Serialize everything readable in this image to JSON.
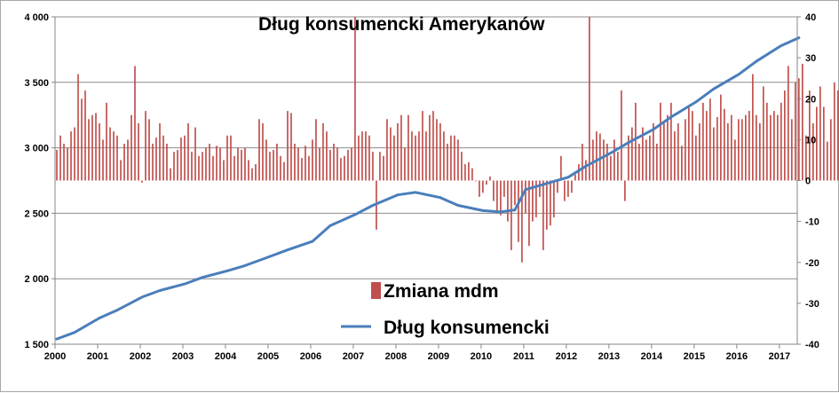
{
  "chart_data": {
    "type": "bar+line",
    "title": "Dług konsumencki Amerykanów",
    "x_axis": {
      "ticks": [
        "2000",
        "2001",
        "2002",
        "2003",
        "2004",
        "2005",
        "2006",
        "2007",
        "2008",
        "2009",
        "2010",
        "2011",
        "2012",
        "2013",
        "2014",
        "2015",
        "2016",
        "2017"
      ],
      "range": [
        2000.0,
        2017.42
      ]
    },
    "y_left": {
      "ticks": [
        "1 500",
        "2 000",
        "2 500",
        "3 000",
        "3 500",
        "4 000"
      ],
      "range": [
        1500,
        4000
      ]
    },
    "y_right": {
      "ticks": [
        "-40",
        "-30",
        "-20",
        "-10",
        "0",
        "10",
        "20",
        "30",
        "40"
      ],
      "range": [
        -40,
        40
      ]
    },
    "grid": true,
    "legend_position": "center-left",
    "series": [
      {
        "name": "Zmiana mdm",
        "type": "bar",
        "axis": "right",
        "color": "#c0504d",
        "start": "2000-01",
        "frequency": "monthly",
        "values": [
          7.5,
          11.0,
          9.0,
          8.0,
          12.0,
          13.0,
          26.0,
          20.0,
          22.0,
          15.0,
          16.0,
          16.5,
          14.0,
          10.0,
          19.0,
          13.0,
          12.0,
          11.0,
          5.0,
          9.0,
          10.0,
          16.0,
          28.0,
          14.0,
          -0.5,
          17.0,
          15.0,
          9.0,
          10.5,
          14.0,
          11.0,
          9.0,
          3.0,
          7.0,
          7.5,
          10.5,
          11.0,
          14.0,
          7.0,
          13.0,
          6.0,
          7.0,
          8.0,
          9.0,
          6.0,
          8.5,
          8.0,
          5.0,
          11.0,
          11.0,
          6.0,
          8.0,
          7.5,
          8.0,
          5.0,
          3.0,
          4.0,
          15.0,
          14.0,
          10.0,
          7.0,
          7.5,
          9.0,
          6.0,
          4.5,
          17.0,
          16.5,
          9.0,
          8.0,
          5.5,
          8.5,
          6.0,
          10.0,
          15.0,
          8.0,
          14.0,
          12.0,
          7.5,
          9.0,
          8.0,
          5.5,
          6.0,
          7.5,
          8.0,
          40.0,
          11.0,
          12.0,
          12.0,
          11.0,
          7.0,
          -12.0,
          7.0,
          6.0,
          15.0,
          13.0,
          11.0,
          14.0,
          16.0,
          8.0,
          16.0,
          12.0,
          11.0,
          12.0,
          17.0,
          12.0,
          16.0,
          17.0,
          15.0,
          14.0,
          12.0,
          9.0,
          11.0,
          11.0,
          10.0,
          7.0,
          4.0,
          4.5,
          3.0,
          0.0,
          -4.0,
          -3.0,
          -1.0,
          1.0,
          -5.0,
          -8.0,
          -8.5,
          -4.0,
          -10.0,
          -17.0,
          -6.0,
          -15.0,
          -20.0,
          -8.0,
          -16.0,
          -10.0,
          -9.0,
          -4.0,
          -17.0,
          -12.0,
          -11.0,
          -9.0,
          -3.0,
          6.0,
          -5.0,
          -4.0,
          -3.0,
          1.5,
          4.0,
          9.0,
          5.0,
          40.0,
          10.0,
          12.0,
          11.5,
          10.0,
          9.0,
          6.0,
          10.0,
          7.0,
          22.0,
          -5.0,
          11.0,
          13.0,
          19.0,
          9.0,
          13.0,
          10.0,
          11.0,
          14.0,
          9.0,
          19.0,
          14.0,
          16.0,
          19.0,
          12.0,
          14.0,
          8.5,
          15.0,
          18.0,
          17.0,
          11.0,
          14.0,
          19.0,
          17.0,
          20.0,
          13.0,
          15.5,
          21.0,
          17.5,
          14.0,
          16.0,
          10.0,
          15.0,
          15.0,
          16.0,
          17.0,
          26.0,
          16.0,
          14.0,
          23.0,
          19.0,
          16.0,
          17.0,
          16.0,
          19.0,
          22.0,
          28.0,
          15.0,
          24.0,
          25.0,
          28.5,
          11.0,
          22.0,
          14.0,
          18.0,
          23.0,
          18.0,
          9.5,
          15.0,
          24.0,
          22.0,
          14.0,
          21.0,
          18.0,
          23.0,
          19.0,
          25.0,
          25.0,
          11.0,
          14.0,
          22.0,
          19.0,
          18.0,
          24.0,
          18.5,
          10.0,
          14.0,
          16.0,
          23.0,
          18.0,
          24.0,
          11.0,
          12.0,
          16.0,
          18.0,
          19.0
        ]
      },
      {
        "name": "Dług konsumencki",
        "type": "line",
        "axis": "left",
        "color": "#4a7ebb",
        "points": [
          [
            "2000-01",
            1540
          ],
          [
            "2000-06",
            1590
          ],
          [
            "2001-01",
            1700
          ],
          [
            "2001-06",
            1760
          ],
          [
            "2002-01",
            1860
          ],
          [
            "2002-06",
            1910
          ],
          [
            "2003-01",
            1960
          ],
          [
            "2003-06",
            2010
          ],
          [
            "2004-01",
            2060
          ],
          [
            "2004-06",
            2100
          ],
          [
            "2005-01",
            2170
          ],
          [
            "2005-06",
            2220
          ],
          [
            "2006-01",
            2285
          ],
          [
            "2006-06",
            2405
          ],
          [
            "2007-01",
            2490
          ],
          [
            "2007-06",
            2560
          ],
          [
            "2008-01",
            2640
          ],
          [
            "2008-06",
            2660
          ],
          [
            "2009-01",
            2620
          ],
          [
            "2009-06",
            2560
          ],
          [
            "2010-01",
            2520
          ],
          [
            "2010-06",
            2510
          ],
          [
            "2010-10",
            2525
          ],
          [
            "2011-01",
            2680
          ],
          [
            "2011-06",
            2720
          ],
          [
            "2012-01",
            2775
          ],
          [
            "2012-06",
            2860
          ],
          [
            "2013-01",
            2960
          ],
          [
            "2013-06",
            3040
          ],
          [
            "2014-01",
            3140
          ],
          [
            "2014-06",
            3235
          ],
          [
            "2015-01",
            3350
          ],
          [
            "2015-06",
            3450
          ],
          [
            "2016-01",
            3560
          ],
          [
            "2016-06",
            3660
          ],
          [
            "2017-01",
            3780
          ],
          [
            "2017-06",
            3840
          ]
        ]
      }
    ]
  }
}
